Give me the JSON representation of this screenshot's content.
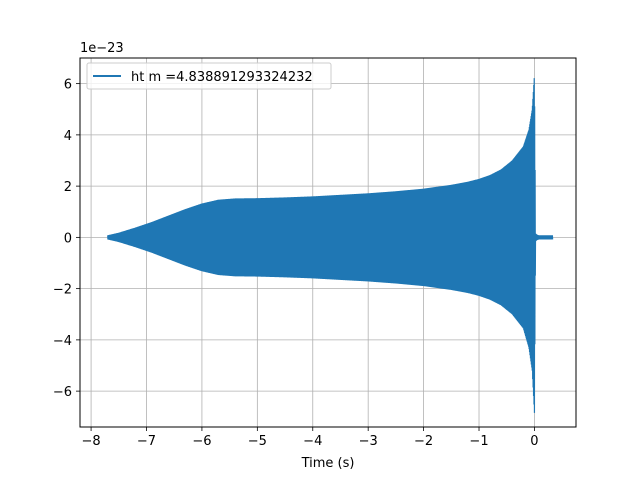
{
  "chart_data": {
    "type": "line",
    "xlabel": "Time (s)",
    "ylabel": "",
    "offset_label": "1e−23",
    "scale": 1e-23,
    "xlim": [
      -8.2,
      0.75
    ],
    "ylim": [
      -7.4,
      7.0
    ],
    "x_ticks": [
      -8,
      -7,
      -6,
      -5,
      -4,
      -3,
      -2,
      -1,
      0
    ],
    "y_ticks": [
      -6,
      -4,
      -2,
      0,
      2,
      4,
      6
    ],
    "x_tick_labels": [
      "−8",
      "−7",
      "−6",
      "−5",
      "−4",
      "−3",
      "−2",
      "−1",
      "0"
    ],
    "y_tick_labels": [
      "−6",
      "−4",
      "−2",
      "0",
      "2",
      "4",
      "6"
    ],
    "grid": true,
    "legend_position": "top-left",
    "color": "#1f77b4",
    "series": [
      {
        "name": "ht m =4.838891293324232",
        "envelope": {
          "x": [
            -7.7,
            -7.5,
            -7.2,
            -6.9,
            -6.6,
            -6.3,
            -6.0,
            -5.7,
            -5.4,
            -5.0,
            -4.5,
            -4.0,
            -3.5,
            -3.0,
            -2.5,
            -2.0,
            -1.5,
            -1.2,
            -1.0,
            -0.8,
            -0.6,
            -0.4,
            -0.2,
            -0.1,
            -0.04,
            0.0,
            0.02,
            0.05,
            0.08,
            0.1,
            0.2,
            0.33
          ],
          "upper": [
            0.08,
            0.18,
            0.38,
            0.6,
            0.85,
            1.1,
            1.32,
            1.47,
            1.52,
            1.53,
            1.56,
            1.6,
            1.66,
            1.72,
            1.8,
            1.9,
            2.05,
            2.17,
            2.28,
            2.43,
            2.65,
            3.0,
            3.55,
            4.2,
            5.0,
            6.35,
            0.15,
            0.1,
            0.08,
            0.08,
            0.08,
            0.08
          ],
          "lower": [
            -0.08,
            -0.18,
            -0.38,
            -0.6,
            -0.85,
            -1.1,
            -1.32,
            -1.47,
            -1.52,
            -1.53,
            -1.56,
            -1.6,
            -1.66,
            -1.72,
            -1.8,
            -1.9,
            -2.05,
            -2.17,
            -2.28,
            -2.43,
            -2.65,
            -3.0,
            -3.55,
            -4.3,
            -5.2,
            -6.85,
            -0.15,
            -0.1,
            -0.08,
            -0.08,
            -0.08,
            -0.08
          ]
        }
      }
    ]
  }
}
